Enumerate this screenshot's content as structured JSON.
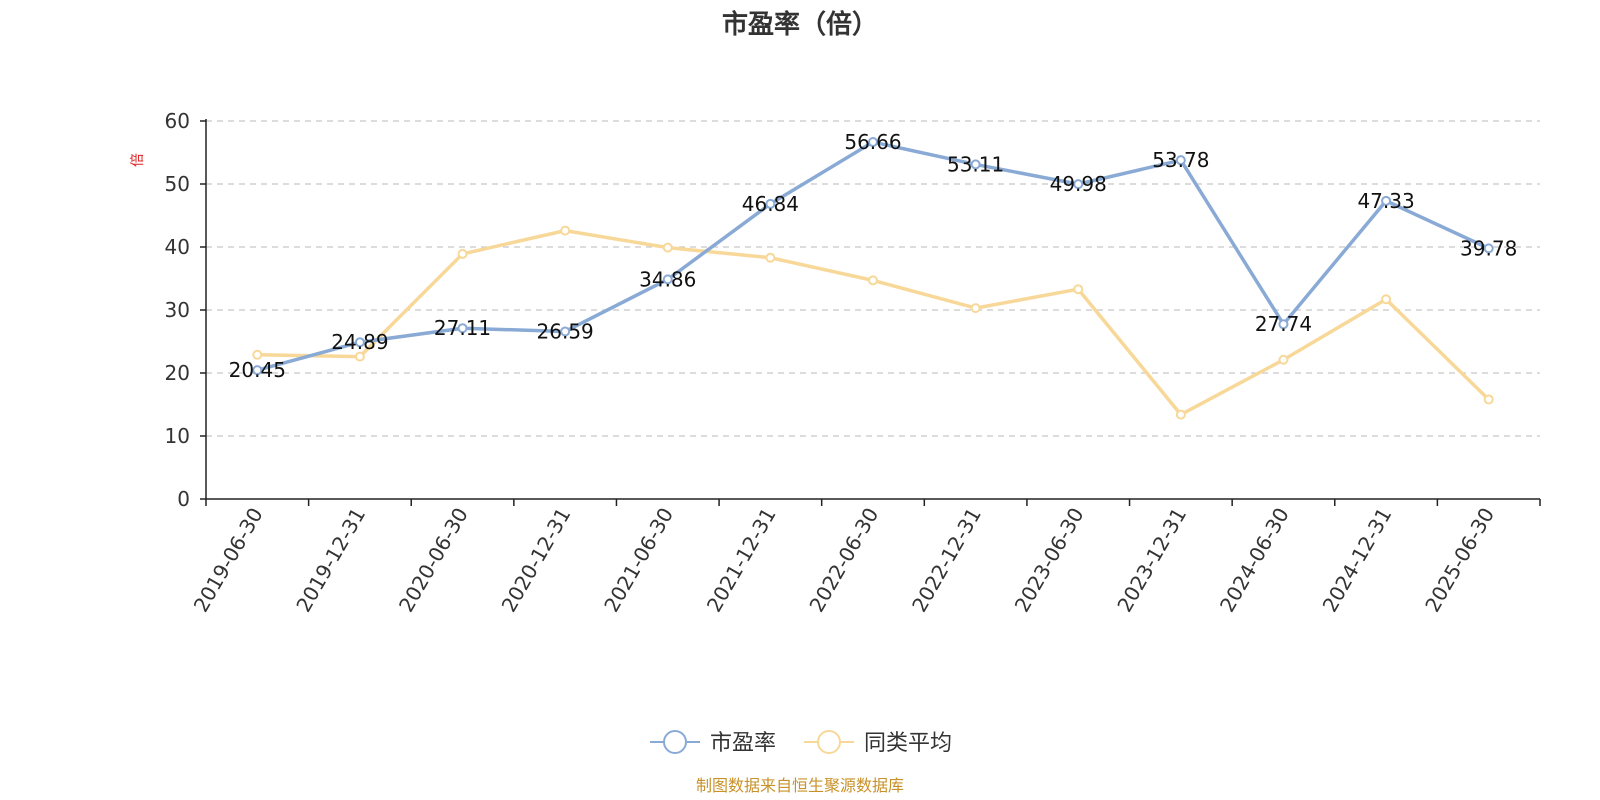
{
  "chart_data": {
    "type": "line",
    "title": "市盈率（倍）",
    "ylabel": "倍",
    "xlabel": "",
    "categories": [
      "2019-06-30",
      "2019-12-31",
      "2020-06-30",
      "2020-12-31",
      "2021-06-30",
      "2021-12-31",
      "2022-06-30",
      "2022-12-31",
      "2023-06-30",
      "2023-12-31",
      "2024-06-30",
      "2024-12-31",
      "2025-06-30"
    ],
    "ylim": [
      0,
      60
    ],
    "yticks": [
      0,
      10,
      20,
      30,
      40,
      50,
      60
    ],
    "grid": true,
    "legend_position": "bottom",
    "series": [
      {
        "name": "市盈率",
        "color": "#8aaad6",
        "values": [
          20.45,
          24.89,
          27.11,
          26.59,
          34.86,
          46.84,
          56.66,
          53.11,
          49.98,
          53.78,
          27.74,
          47.33,
          39.78
        ],
        "labels": [
          "20.45",
          "24.89",
          "27.11",
          "26.59",
          "34.86",
          "46.84",
          "56.66",
          "53.11",
          "49.98",
          "53.78",
          "27.74",
          "47.33",
          "39.78"
        ]
      },
      {
        "name": "同类平均",
        "color": "#f8d898",
        "values": [
          22.9,
          22.6,
          38.9,
          42.6,
          39.9,
          38.3,
          34.7,
          30.3,
          33.3,
          13.4,
          22.1,
          31.7,
          15.8
        ]
      }
    ]
  },
  "source_text": "制图数据来自恒生聚源数据库"
}
